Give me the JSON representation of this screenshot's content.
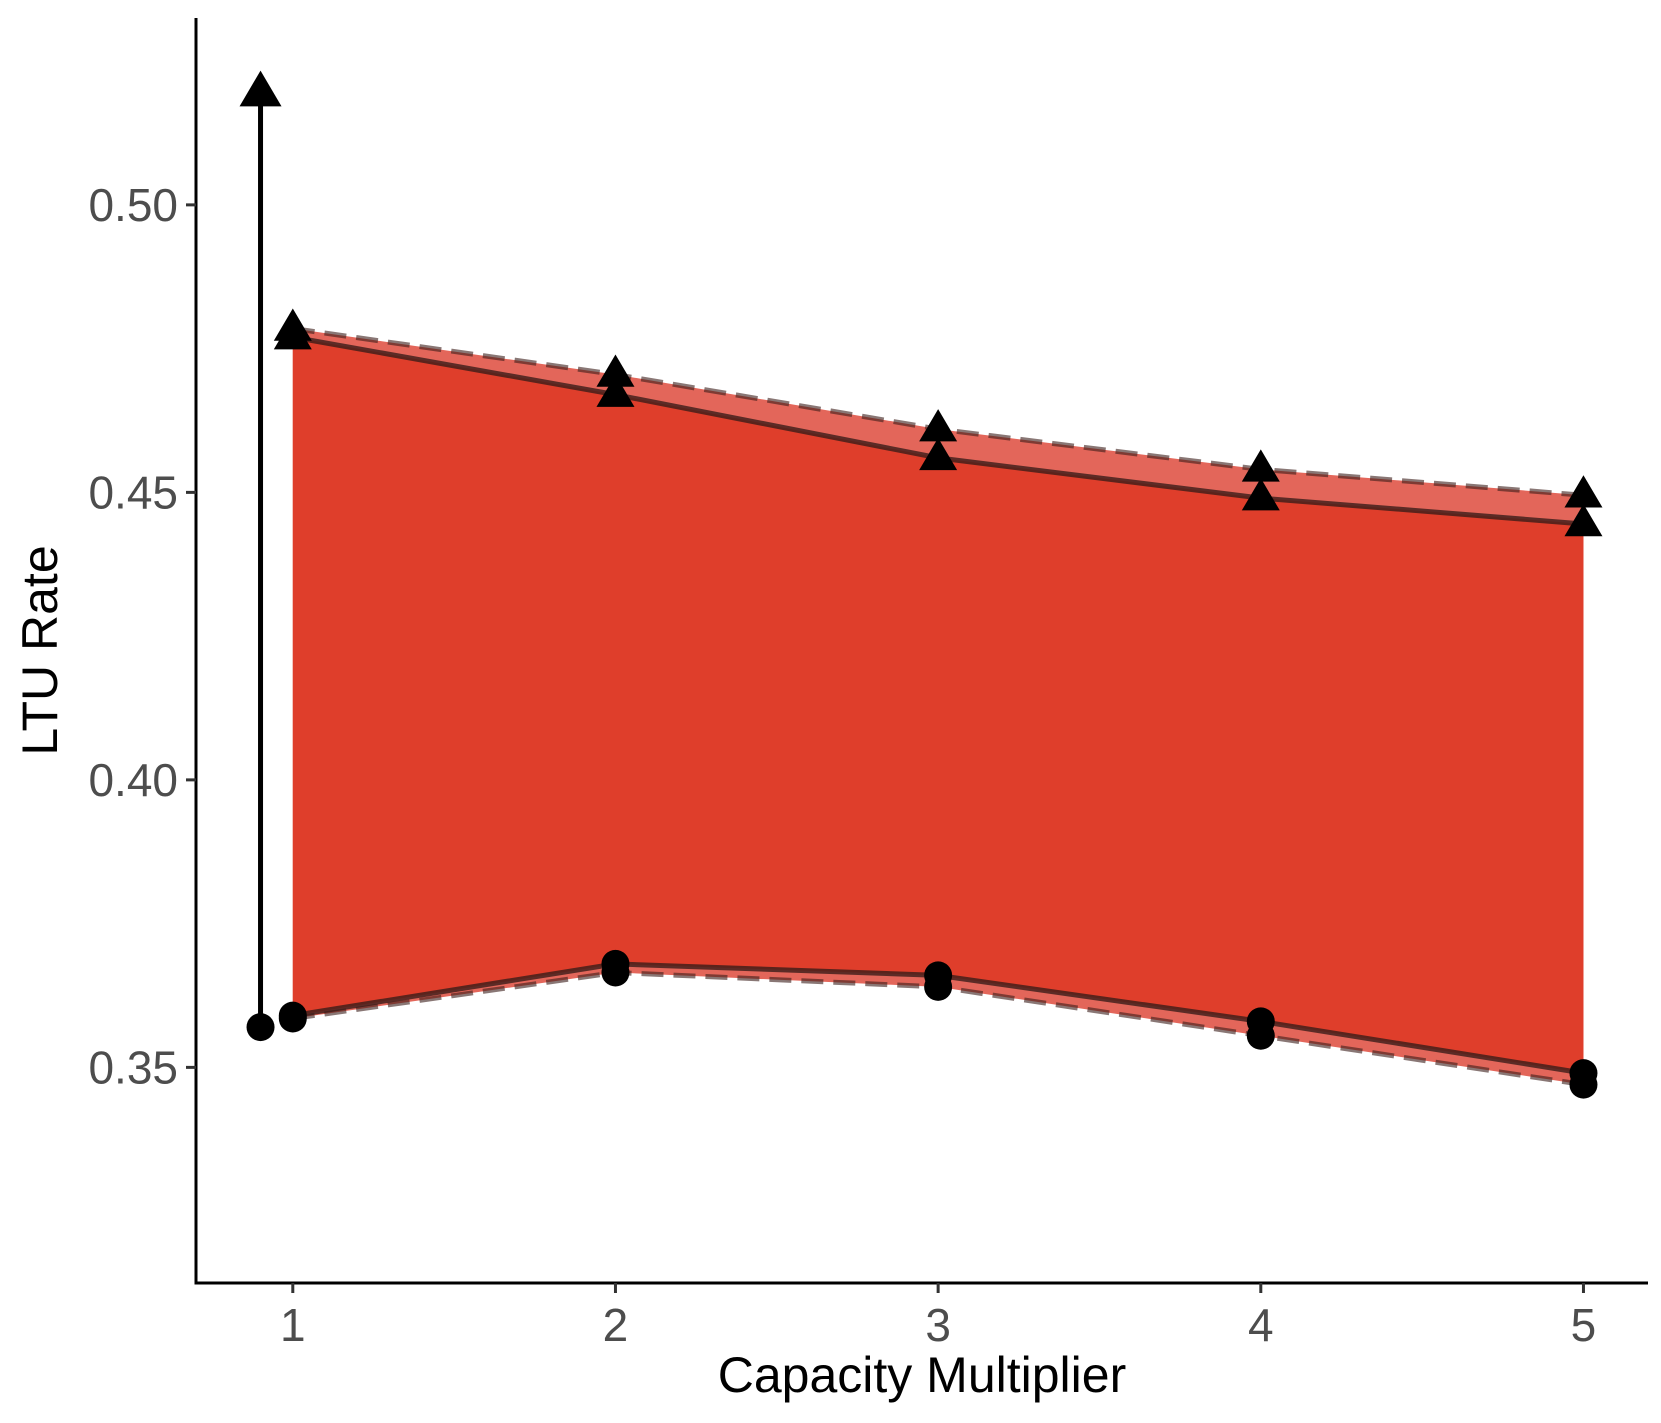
{
  "chart_data": {
    "type": "line",
    "xlabel": "Capacity Multiplier",
    "ylabel": "LTU Rate",
    "x": [
      1,
      2,
      3,
      4,
      5
    ],
    "xlim": [
      0.7,
      5.2
    ],
    "ylim": [
      0.3125,
      0.5325
    ],
    "x_ticks": [
      "1",
      "2",
      "3",
      "4",
      "5"
    ],
    "y_ticks": [
      0.35,
      0.4,
      0.45,
      0.5
    ],
    "y_tick_labels": [
      "0.35",
      "0.40",
      "0.45",
      "0.50"
    ],
    "grid": false,
    "legend": "none",
    "colors": {
      "outer_band": "#e3665a",
      "inner_band": "#df3e2b",
      "line": "#3a1d19",
      "marker": "#000000",
      "axis": "#000000"
    },
    "series": [
      {
        "values": [
          0.4785,
          0.4705,
          0.461,
          0.454,
          0.4495
        ],
        "line_style": "dashed",
        "marker": "triangle"
      },
      {
        "values": [
          0.477,
          0.467,
          0.456,
          0.449,
          0.4445
        ],
        "line_style": "solid",
        "marker": "triangle"
      },
      {
        "values": [
          0.359,
          0.368,
          0.366,
          0.358,
          0.349
        ],
        "line_style": "solid",
        "marker": "circle"
      },
      {
        "values": [
          0.3585,
          0.3665,
          0.364,
          0.3555,
          0.347
        ],
        "line_style": "dashed",
        "marker": "circle"
      }
    ],
    "reference_arrow": {
      "x": 0.9,
      "y_start": 0.357,
      "y_end": 0.5195,
      "start_marker": "circle",
      "end_marker": "triangle"
    }
  }
}
